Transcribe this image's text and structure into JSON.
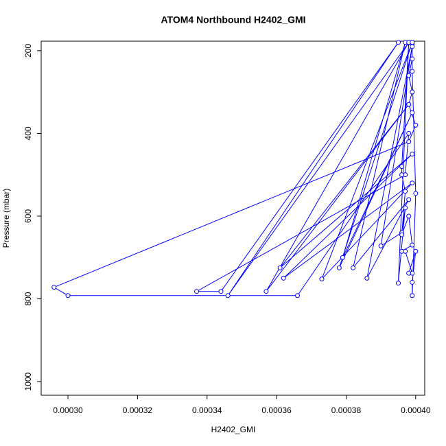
{
  "chart_data": {
    "type": "line",
    "title": "ATOM4 Northbound H2402_GMI",
    "x_label": "H2402_GMI",
    "y_label": "Pressure (mbar)",
    "xlim": [
      0.0002923,
      0.0004026
    ],
    "xticks": [
      {
        "value": 0.0003,
        "label": "0.00030"
      },
      {
        "value": 0.00032,
        "label": "0.00032"
      },
      {
        "value": 0.00034,
        "label": "0.00034"
      },
      {
        "value": 0.00036,
        "label": "0.00036"
      },
      {
        "value": 0.00038,
        "label": "0.00038"
      },
      {
        "value": 0.0004,
        "label": "0.00040"
      }
    ],
    "ylim": [
      1033,
      177
    ],
    "yticks": [
      200,
      400,
      600,
      800,
      1000
    ],
    "markers": "open-circle",
    "series": [
      {
        "color": "#0000ff",
        "x": [
          0.000399,
          0.000399,
          0.000398,
          0.000399,
          0.000398,
          0.0004,
          0.000398,
          0.000296,
          0.0003,
          0.000366,
          0.000398,
          0.000397,
          0.000337,
          0.000344,
          0.000395,
          0.000346,
          0.000398,
          0.000357,
          0.000398,
          0.000361,
          0.000399,
          0.000362,
          0.000399,
          0.000373,
          0.000399,
          0.000378,
          0.000399,
          0.000379,
          0.000397,
          0.000382,
          0.000398,
          0.000386,
          0.000399,
          0.00039,
          0.000396,
          0.000397,
          0.000395,
          0.000398,
          0.000396,
          0.000396,
          0.000397,
          0.000396,
          0.000398,
          0.000399,
          0.000396,
          0.000397,
          0.000399,
          0.000398,
          0.0004,
          0.000399,
          0.000399,
          0.0004,
          0.000399,
          0.000399
        ],
        "values": [
          185,
          220,
          260,
          300,
          330,
          380,
          420,
          772,
          792,
          792,
          400,
          500,
          782,
          782,
          180,
          792,
          180,
          782,
          330,
          725,
          450,
          750,
          520,
          752,
          180,
          725,
          350,
          700,
          180,
          725,
          560,
          750,
          190,
          672,
          640,
          580,
          762,
          180,
          480,
          500,
          540,
          645,
          600,
          670,
          685,
          685,
          738,
          738,
          685,
          760,
          792,
          545,
          250,
          180
        ]
      }
    ]
  }
}
